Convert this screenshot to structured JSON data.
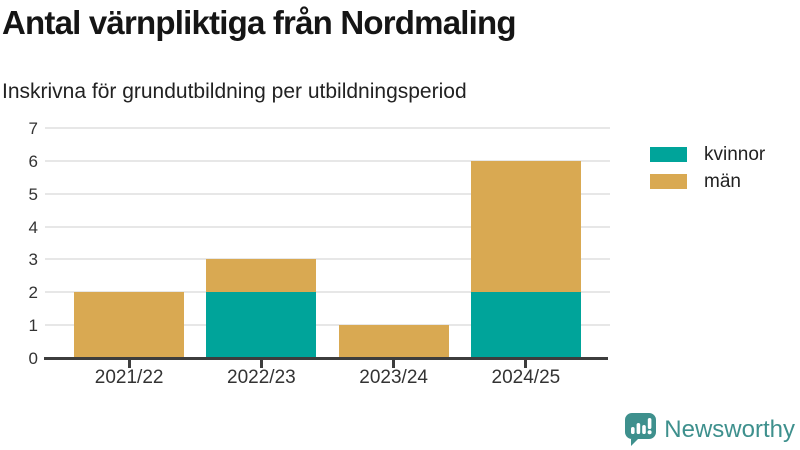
{
  "chart": {
    "title": "Antal värnpliktiga från Nordmaling",
    "subtitle": "Inskrivna för grundutbildning per utbildningsperiod"
  },
  "chart_data": {
    "type": "bar",
    "stacked": true,
    "title": "Antal värnpliktiga från Nordmaling",
    "subtitle": "Inskrivna för grundutbildning per utbildningsperiod",
    "categories": [
      "2021/22",
      "2022/23",
      "2023/24",
      "2024/25"
    ],
    "series": [
      {
        "name": "kvinnor",
        "color": "#00a49a",
        "values": [
          0,
          2,
          0,
          2
        ]
      },
      {
        "name": "män",
        "color": "#d9a952",
        "values": [
          2,
          1,
          1,
          4
        ]
      }
    ],
    "totals": [
      2,
      3,
      1,
      6
    ],
    "ylim": [
      0,
      7
    ],
    "yticks": [
      0,
      1,
      2,
      3,
      4,
      5,
      6,
      7
    ],
    "grid": true,
    "legend_position": "right"
  },
  "colors": {
    "kvinnor": "#00a49a",
    "man": "#d9a952",
    "gridline": "#e7e7e7",
    "axis": "#3d3d3d",
    "text": "#222222"
  },
  "branding": {
    "logo_text": "Newsworthy",
    "logo_color": "#3e908d",
    "chart_icon": "bar-chart-speech-bubble"
  }
}
